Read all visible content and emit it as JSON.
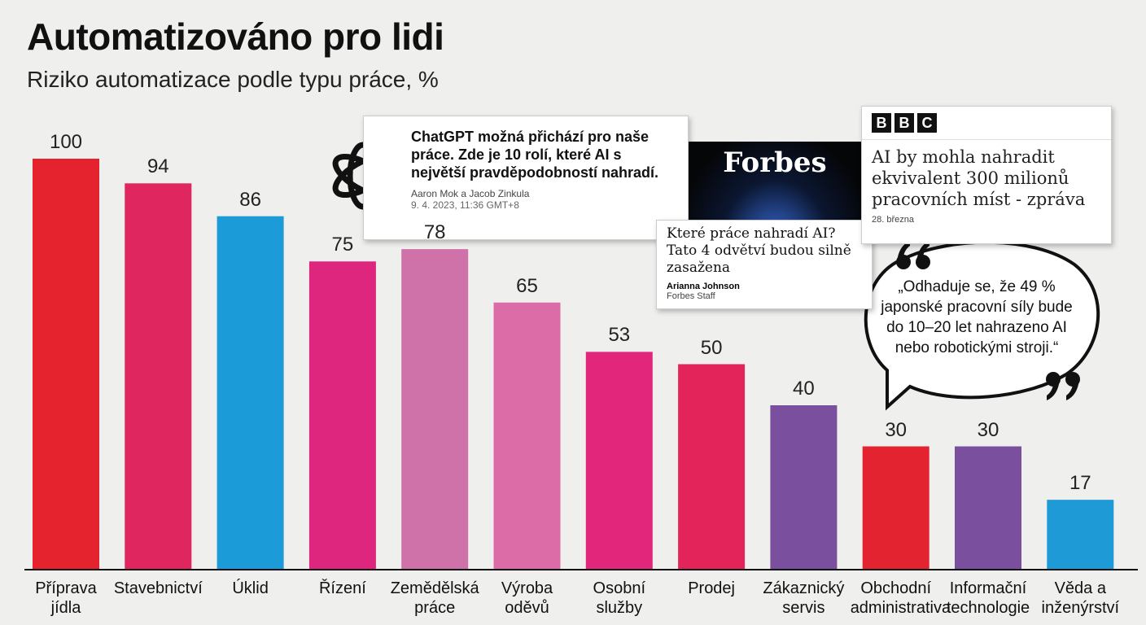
{
  "chart_data": {
    "type": "bar",
    "title": "Automatizováno pro lidi",
    "subtitle": "Riziko automatizace podle typu práce, %",
    "categories": [
      "Příprava jídla",
      "Stavebnictví",
      "Úklid",
      "Řízení",
      "Zemědělská práce",
      "Výroba oděvů",
      "Osobní služby",
      "Prodej",
      "Zákaznický servis",
      "Obchodní administrativa",
      "Informační technologie",
      "Věda a inženýrství"
    ],
    "values": [
      100,
      94,
      86,
      75,
      78,
      65,
      53,
      50,
      40,
      30,
      30,
      17
    ],
    "colors": [
      "#e4232f",
      "#e0265e",
      "#1b9bd7",
      "#df267e",
      "#cf72a9",
      "#dc6ca7",
      "#e1267c",
      "#e3245a",
      "#7a4f9e",
      "#e3232f",
      "#7a4f9e",
      "#1e9ad6"
    ],
    "ylim": [
      0,
      100
    ]
  },
  "cards": {
    "chatgpt": {
      "headline": "ChatGPT možná přichází pro naše práce. Zde je 10 rolí, které AI s největší pravděpodobností nahradí.",
      "authors": "Aaron Mok a Jacob Zinkula",
      "date": "9. 4. 2023, 11:36 GMT+8"
    },
    "forbes": {
      "logo": "Forbes",
      "headline": "Které práce nahradí AI? Tato 4 odvětví budou silně zasažena",
      "author": "Arianna Johnson",
      "role": "Forbes Staff"
    },
    "bbc": {
      "logo": [
        "B",
        "B",
        "C"
      ],
      "headline": "AI by mohla nahradit ekvivalent 300 milionů pracovních míst - zpráva",
      "date": "28. března"
    },
    "quote": "„Odhaduje se, že 49 % japonské pracovní síly bude do 10–20 let nahrazeno AI nebo robotickými stroji.“"
  }
}
